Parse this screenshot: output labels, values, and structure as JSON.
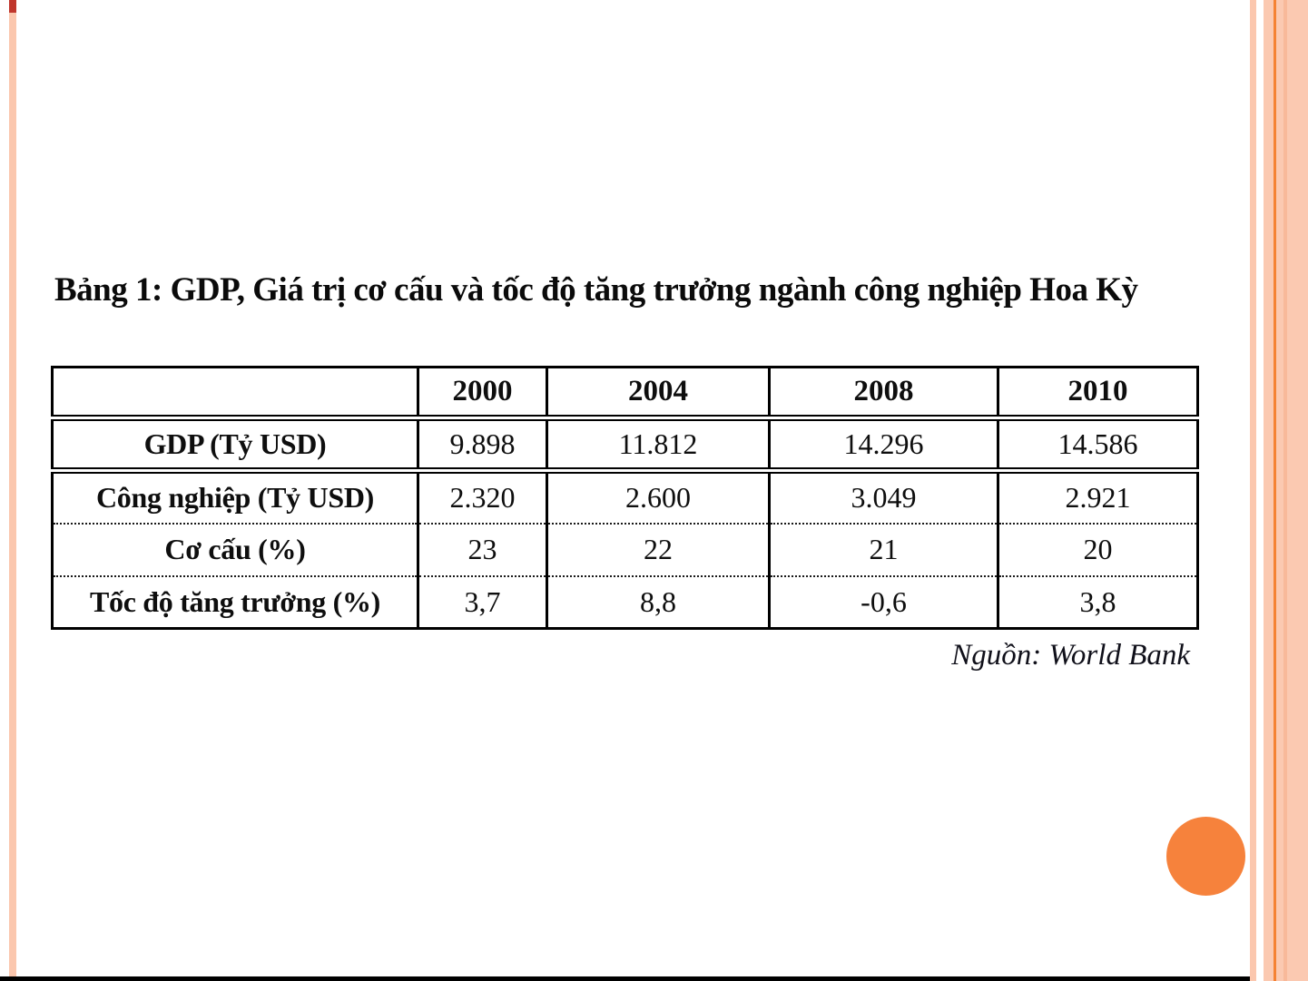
{
  "slide": {
    "title": "Bảng 1: GDP, Giá trị cơ cấu và tốc độ tăng trưởng ngành công nghiệp Hoa Kỳ",
    "source": "Nguồn: World Bank"
  },
  "table": {
    "columns": [
      "",
      "2000",
      "2004",
      "2008",
      "2010"
    ],
    "rows": [
      {
        "label": "GDP (Tỷ USD)",
        "values": [
          "9.898",
          "11.812",
          "14.296",
          "14.586"
        ]
      },
      {
        "label": "Công nghiệp (Tỷ USD)",
        "values": [
          "2.320",
          "2.600",
          "3.049",
          "2.921"
        ]
      },
      {
        "label": "Cơ cấu (%)",
        "values": [
          "23",
          "22",
          "21",
          "20"
        ]
      },
      {
        "label": "Tốc độ tăng trưởng (%)",
        "values": [
          "3,7",
          "8,8",
          "-0,6",
          "3,8"
        ]
      }
    ]
  },
  "chart_data": {
    "type": "table",
    "title": "Bảng 1: GDP, Giá trị cơ cấu và tốc độ tăng trưởng ngành công nghiệp Hoa Kỳ",
    "categories": [
      "2000",
      "2004",
      "2008",
      "2010"
    ],
    "series": [
      {
        "name": "GDP (Tỷ USD)",
        "values": [
          9.898,
          11.812,
          14.296,
          14.586
        ]
      },
      {
        "name": "Công nghiệp (Tỷ USD)",
        "values": [
          2.32,
          2.6,
          3.049,
          2.921
        ]
      },
      {
        "name": "Cơ cấu (%)",
        "values": [
          23,
          22,
          21,
          20
        ]
      },
      {
        "name": "Tốc độ tăng trưởng (%)",
        "values": [
          3.7,
          8.8,
          -0.6,
          3.8
        ]
      }
    ],
    "source": "Nguồn: World Bank"
  },
  "colors": {
    "stripe_peach": "#fbc7ae",
    "panel_peach": "#fbc9b1",
    "accent_orange_line": "#f58233",
    "panel_shade_line": "#f8b99a",
    "accent_circle": "#f6823c",
    "stripe_cap_red": "#c0362c",
    "bottom_bar": "#000000"
  }
}
